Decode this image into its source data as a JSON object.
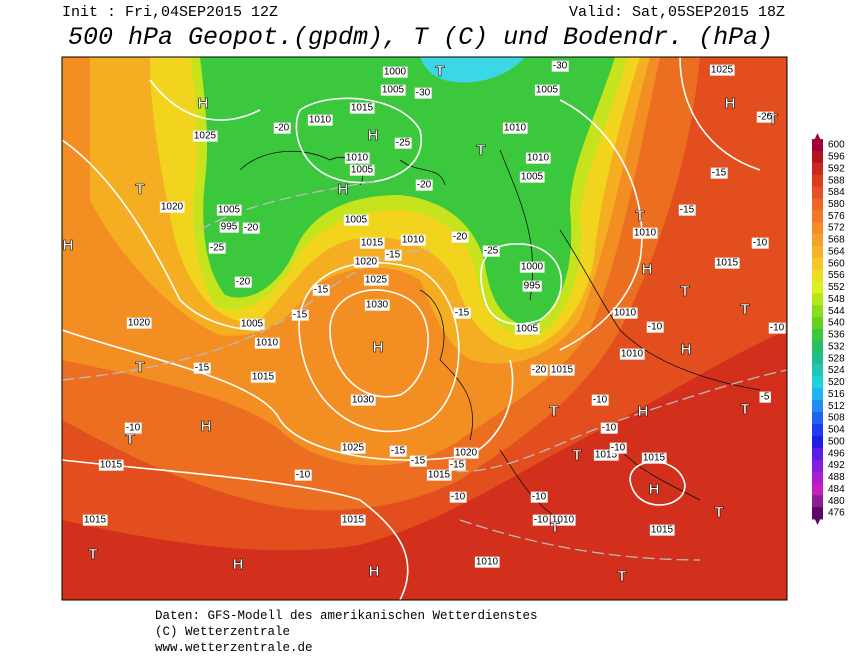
{
  "header": {
    "init": "Init : Fri,04SEP2015 12Z",
    "valid": "Valid: Sat,05SEP2015 18Z",
    "title": "500 hPa Geopot.(gpdm), T (C) und Bodendr. (hPa)"
  },
  "legend": {
    "labels": [
      600,
      596,
      592,
      588,
      584,
      580,
      576,
      572,
      568,
      564,
      560,
      556,
      552,
      548,
      544,
      540,
      536,
      532,
      528,
      524,
      520,
      516,
      512,
      508,
      504,
      500,
      496,
      492,
      488,
      484,
      480,
      476
    ],
    "colors": [
      "#a0003c",
      "#b4141e",
      "#c8281e",
      "#dc3c1e",
      "#e65028",
      "#f06428",
      "#f07828",
      "#f58c28",
      "#f5a028",
      "#f5b428",
      "#f5c828",
      "#f0dc1e",
      "#dcf01e",
      "#b4e61e",
      "#8cdc1e",
      "#64d21e",
      "#3cc83c",
      "#28be64",
      "#1ebe8c",
      "#1ec8b4",
      "#1ed2dc",
      "#1eb4f0",
      "#1e8cf0",
      "#1e64f0",
      "#1e3cf0",
      "#1e1ee6",
      "#5a1ee6",
      "#821edc",
      "#aa1ed2",
      "#c81ebe",
      "#8c1e96",
      "#5a0a64"
    ]
  },
  "map": {
    "pressure_labels": [
      1000,
      1005,
      1015,
      1010,
      1010,
      1005,
      1005,
      995,
      1005,
      1015,
      1010,
      1020,
      1025,
      1030,
      1030,
      1025,
      1020,
      1015,
      1015,
      1010,
      1010,
      1015,
      1015,
      1015,
      1015,
      1015,
      1010,
      1005,
      1020,
      1020,
      1025,
      1025,
      1005,
      1010,
      1010,
      1005,
      1010,
      1015,
      1000,
      995,
      1005,
      1010,
      1010,
      1015,
      1015
    ],
    "temperature_labels": [
      -25,
      -20,
      -15,
      -20,
      -25,
      -20,
      -20,
      -25,
      -15,
      -15,
      -15,
      -20,
      -15,
      -10,
      -10,
      -15,
      -15,
      -15,
      -10,
      -10,
      -10,
      -10,
      -10,
      -10,
      -10,
      -10,
      -10,
      -15,
      -15,
      -5,
      -20,
      -30,
      -30,
      -20
    ],
    "centers": [
      "H",
      "T",
      "H",
      "T",
      "T",
      "H",
      "T",
      "H",
      "H",
      "H",
      "H",
      "T",
      "T",
      "T",
      "H",
      "T",
      "H",
      "T",
      "H",
      "T",
      "T",
      "T",
      "T",
      "H",
      "T",
      "H",
      "T",
      "T",
      "H"
    ]
  },
  "footer": {
    "source": "Daten: GFS-Modell des amerikanischen Wetterdienstes",
    "copyright": "(C) Wetterzentrale",
    "url": "www.wetterzentrale.de"
  }
}
